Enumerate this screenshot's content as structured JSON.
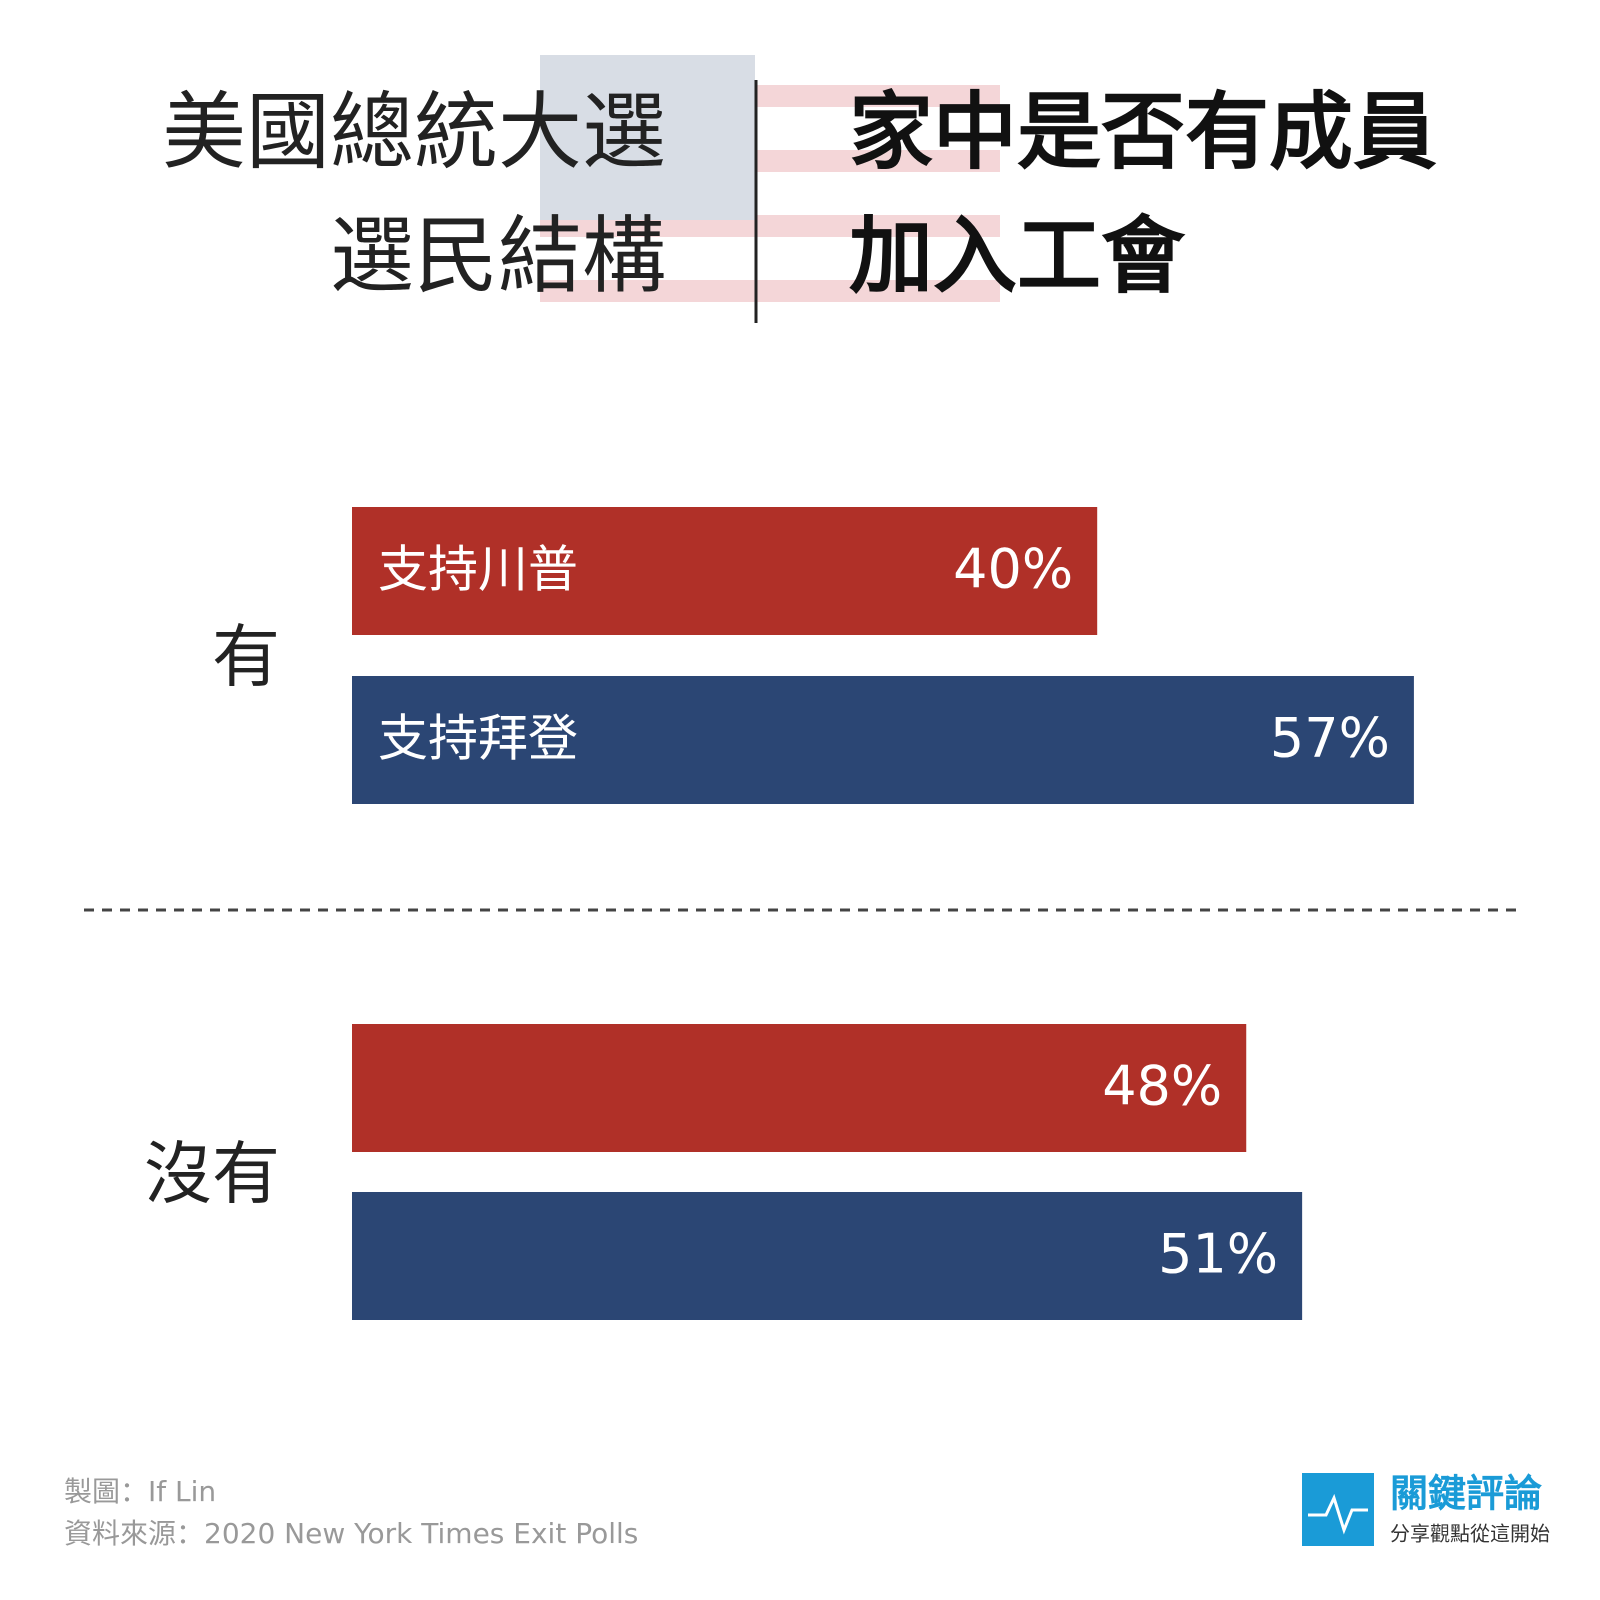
{
  "chart_data": {
    "type": "bar",
    "orientation": "horizontal",
    "title_left": [
      "美國總統大選",
      "選民結構"
    ],
    "title_right": [
      "家中是否有成員",
      "加入工會"
    ],
    "categories": [
      "有",
      "沒有"
    ],
    "series": [
      {
        "name": "支持川普",
        "color": "#b03028",
        "values": [
          40,
          48
        ],
        "value_labels": [
          "40%",
          "48%"
        ]
      },
      {
        "name": "支持拜登",
        "color": "#2b4674",
        "values": [
          57,
          51
        ],
        "value_labels": [
          "57%",
          "51%"
        ]
      }
    ],
    "credit": "製圖：If Lin",
    "source": "資料來源：2020 New York Times Exit Polls",
    "logo": {
      "name": "關鍵評論",
      "slogan": "分享觀點從這開始"
    }
  }
}
